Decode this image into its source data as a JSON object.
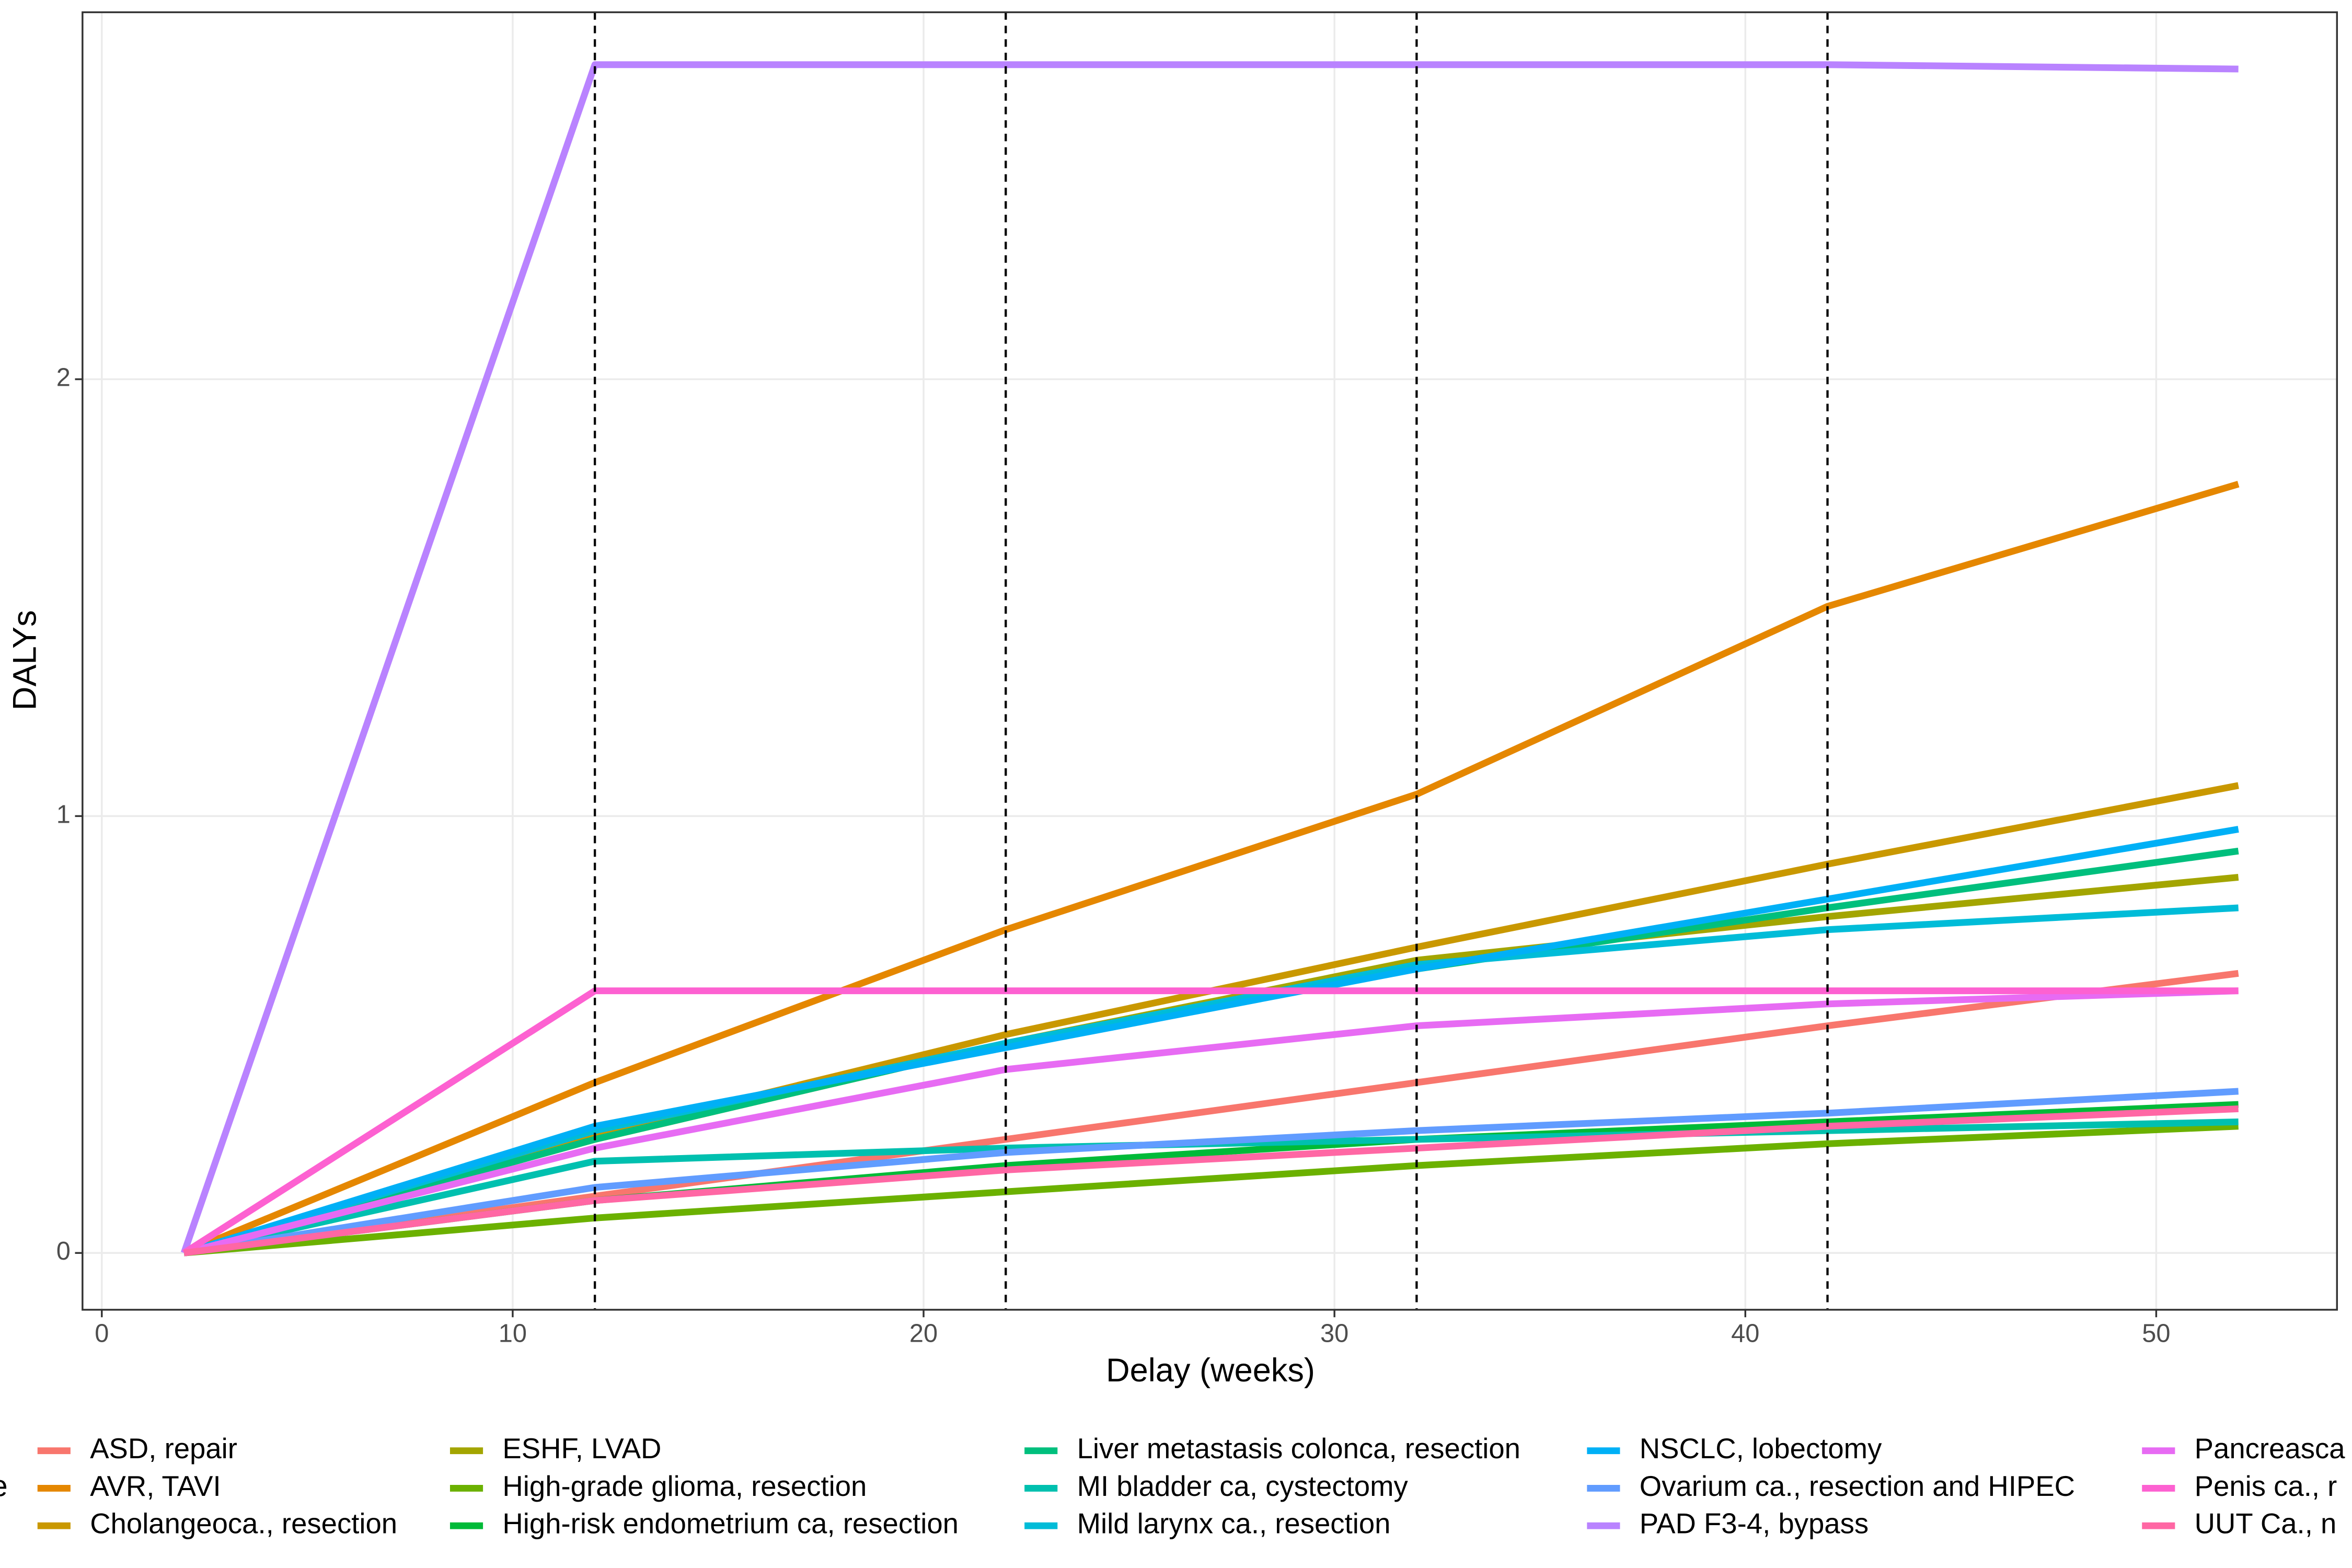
{
  "chart_data": {
    "type": "line",
    "x_label": "Delay (weeks)",
    "y_label": "DALYs",
    "legend_title": "e",
    "x": [
      2,
      12,
      22,
      32,
      42,
      52
    ],
    "xlim": [
      -0.47,
      54.4
    ],
    "ylim": [
      -0.13,
      2.84
    ],
    "xticks": [
      0,
      10,
      20,
      30,
      40,
      50
    ],
    "yticks": [
      0,
      1,
      2
    ],
    "vlines": [
      12,
      22,
      32,
      42
    ],
    "grid": true,
    "legend_position": "bottom",
    "series": [
      {
        "name": "ASD, repair",
        "color": "#F8766D",
        "values": [
          0,
          0.13,
          0.26,
          0.39,
          0.52,
          0.64
        ]
      },
      {
        "name": "AVR, TAVI",
        "color": "#E58700",
        "values": [
          0,
          0.39,
          0.74,
          1.05,
          1.48,
          1.76
        ]
      },
      {
        "name": "Cholangeoca., resection",
        "color": "#C99800",
        "values": [
          0,
          0.27,
          0.5,
          0.7,
          0.89,
          1.07
        ]
      },
      {
        "name": "ESHF, LVAD",
        "color": "#A3A500",
        "values": [
          0,
          0.26,
          0.48,
          0.67,
          0.77,
          0.86
        ]
      },
      {
        "name": "High-grade glioma, resection",
        "color": "#6BB100",
        "values": [
          0,
          0.08,
          0.14,
          0.2,
          0.25,
          0.29
        ]
      },
      {
        "name": "High-risk endometrium ca, resection",
        "color": "#00BA38",
        "values": [
          0,
          0.12,
          0.2,
          0.26,
          0.3,
          0.34
        ]
      },
      {
        "name": "Liver metastasis colonca, resection",
        "color": "#00BF7D",
        "values": [
          0,
          0.26,
          0.48,
          0.65,
          0.79,
          0.92
        ]
      },
      {
        "name": "MI bladder ca, cystectomy",
        "color": "#00C0AF",
        "values": [
          0,
          0.21,
          0.24,
          0.26,
          0.28,
          0.3
        ]
      },
      {
        "name": "Mild larynx ca., resection",
        "color": "#00BCD8",
        "values": [
          0,
          0.28,
          0.48,
          0.66,
          0.74,
          0.79
        ]
      },
      {
        "name": "NSCLC, lobectomy",
        "color": "#00B0F6",
        "values": [
          0,
          0.29,
          0.47,
          0.65,
          0.81,
          0.97
        ]
      },
      {
        "name": "Ovarium ca., resection and HIPEC",
        "color": "#619CFF",
        "values": [
          0,
          0.15,
          0.23,
          0.28,
          0.32,
          0.37
        ]
      },
      {
        "name": "PAD F3-4, bypass",
        "color": "#B983FF",
        "values": [
          0,
          2.72,
          2.72,
          2.72,
          2.72,
          2.71
        ]
      },
      {
        "name": "Pancreasca",
        "color": "#E76BF3",
        "values": [
          0,
          0.24,
          0.42,
          0.52,
          0.57,
          0.6
        ]
      },
      {
        "name": "Penis ca., r",
        "color": "#FD61D1",
        "values": [
          0,
          0.6,
          0.6,
          0.6,
          0.6,
          0.6
        ]
      },
      {
        "name": "UUT Ca., n",
        "color": "#FF67A4",
        "values": [
          0,
          0.12,
          0.19,
          0.24,
          0.29,
          0.33
        ]
      }
    ]
  }
}
